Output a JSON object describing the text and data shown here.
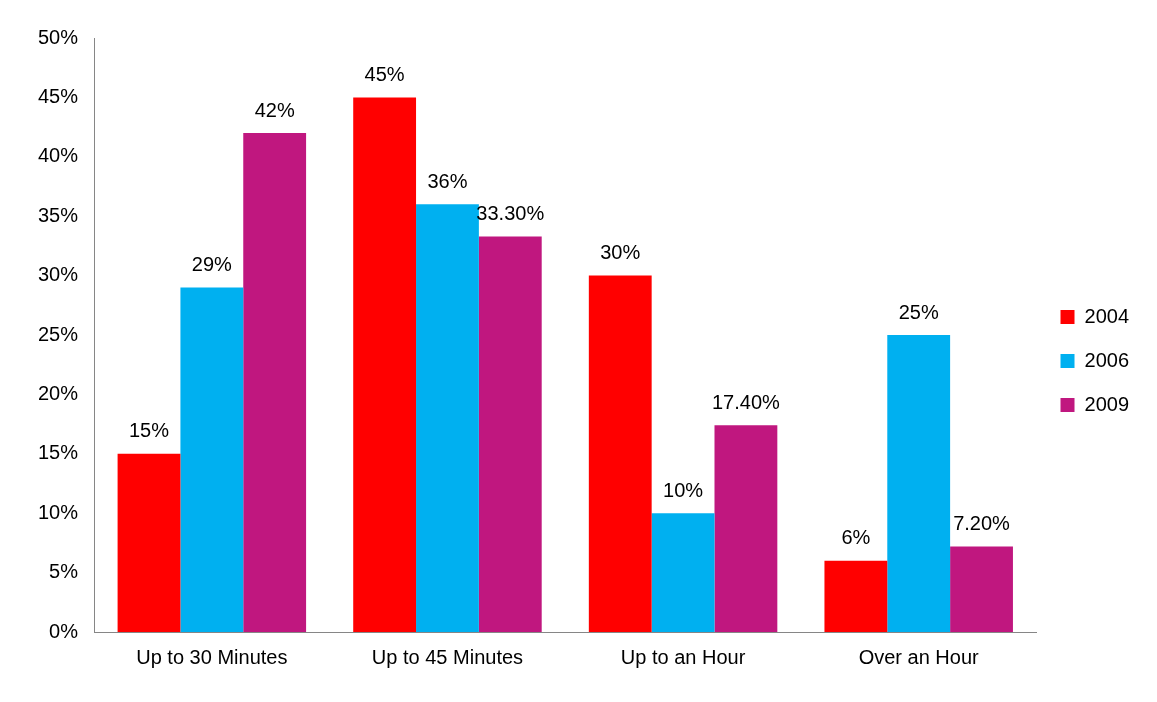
{
  "chart_data": {
    "type": "bar",
    "categories": [
      "Up to 30 Minutes",
      "Up to 45 Minutes",
      "Up to an Hour",
      "Over an Hour"
    ],
    "series": [
      {
        "name": "2004",
        "color": "#ff0000",
        "values": [
          15,
          45,
          30,
          6
        ],
        "value_labels": [
          "15%",
          "45%",
          "30%",
          "6%"
        ]
      },
      {
        "name": "2006",
        "color": "#00b0f0",
        "values": [
          29,
          36,
          10,
          25
        ],
        "value_labels": [
          "29%",
          "36%",
          "10%",
          "25%"
        ]
      },
      {
        "name": "2009",
        "color": "#c0177f",
        "values": [
          42,
          33.3,
          17.4,
          7.2
        ],
        "value_labels": [
          "42%",
          "33.30%",
          "17.40%",
          "7.20%"
        ]
      }
    ],
    "ylim": [
      0,
      50
    ],
    "yticks": [
      {
        "value": 0,
        "label": "0%"
      },
      {
        "value": 5,
        "label": "5%"
      },
      {
        "value": 10,
        "label": "10%"
      },
      {
        "value": 15,
        "label": "15%"
      },
      {
        "value": 20,
        "label": "20%"
      },
      {
        "value": 25,
        "label": "25%"
      },
      {
        "value": 30,
        "label": "30%"
      },
      {
        "value": 35,
        "label": "35%"
      },
      {
        "value": 40,
        "label": "40%"
      },
      {
        "value": 45,
        "label": "45%"
      },
      {
        "value": 50,
        "label": "50%"
      }
    ],
    "grid": false,
    "legend": "right"
  }
}
